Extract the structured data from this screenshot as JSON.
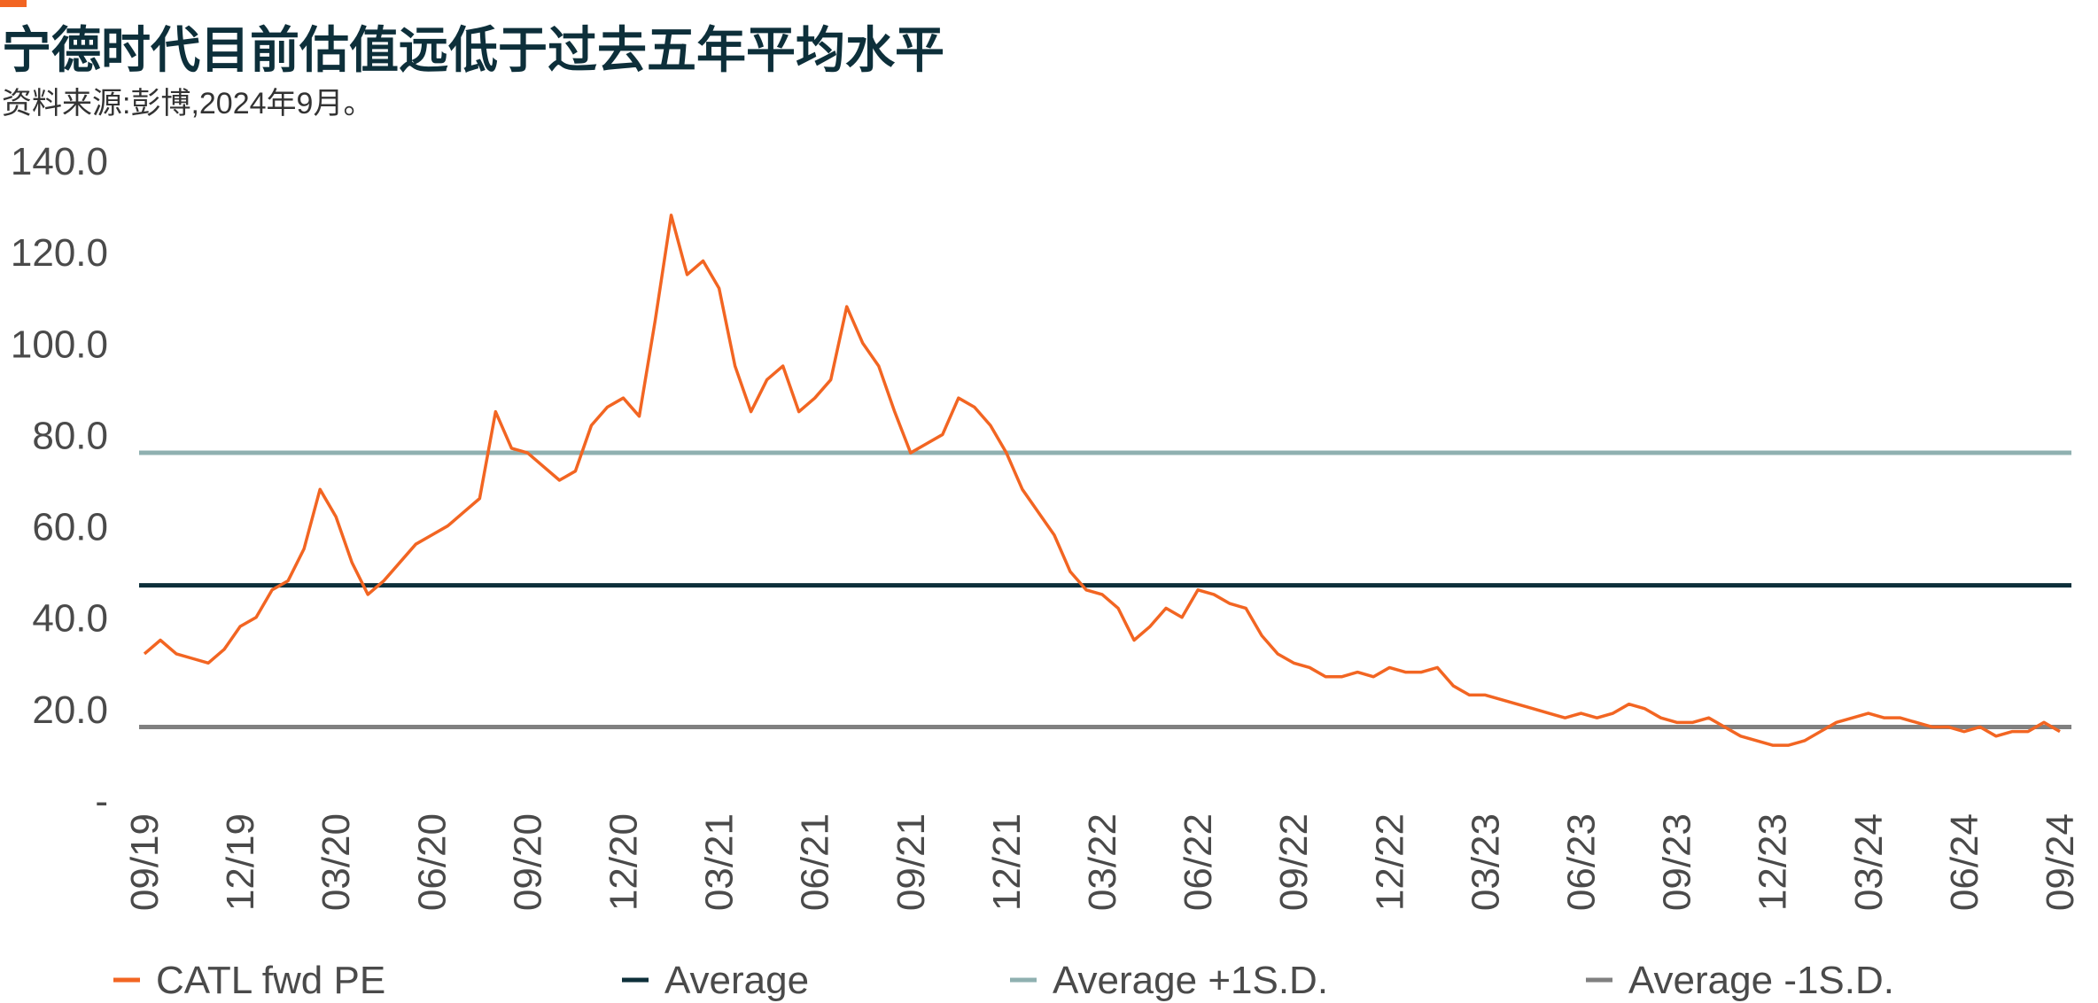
{
  "chart_data": {
    "type": "line",
    "title": "宁德时代目前估值远低于过去五年平均水平",
    "subtitle": "资料来源:彭博,2024年9月。",
    "categories": [
      "09/19",
      null,
      null,
      null,
      null,
      null,
      "12/19",
      null,
      null,
      null,
      null,
      null,
      "03/20",
      null,
      null,
      null,
      null,
      null,
      "06/20",
      null,
      null,
      null,
      null,
      null,
      "09/20",
      null,
      null,
      null,
      null,
      null,
      "12/20",
      null,
      null,
      null,
      null,
      null,
      "03/21",
      null,
      null,
      null,
      null,
      null,
      "06/21",
      null,
      null,
      null,
      null,
      null,
      "09/21",
      null,
      null,
      null,
      null,
      null,
      "12/21",
      null,
      null,
      null,
      null,
      null,
      "03/22",
      null,
      null,
      null,
      null,
      null,
      "06/22",
      null,
      null,
      null,
      null,
      null,
      "09/22",
      null,
      null,
      null,
      null,
      null,
      "12/22",
      null,
      null,
      null,
      null,
      null,
      "03/23",
      null,
      null,
      null,
      null,
      null,
      "06/23",
      null,
      null,
      null,
      null,
      null,
      "09/23",
      null,
      null,
      null,
      null,
      null,
      "12/23",
      null,
      null,
      null,
      null,
      null,
      "03/24",
      null,
      null,
      null,
      null,
      null,
      "06/24",
      null,
      null,
      null,
      null,
      null,
      "09/24"
    ],
    "series": [
      {
        "name": "CATL fwd PE",
        "color": "#f26522",
        "values": [
          32,
          35,
          32,
          31,
          30,
          33,
          38,
          40,
          46,
          48,
          55,
          68,
          62,
          52,
          45,
          48,
          52,
          56,
          58,
          60,
          63,
          66,
          85,
          77,
          76,
          73,
          70,
          72,
          82,
          86,
          88,
          84,
          105,
          128,
          115,
          118,
          112,
          95,
          85,
          92,
          95,
          85,
          88,
          92,
          108,
          100,
          95,
          85,
          76,
          78,
          80,
          88,
          86,
          82,
          76,
          68,
          63,
          58,
          50,
          46,
          45,
          42,
          35,
          38,
          42,
          40,
          46,
          45,
          43,
          42,
          36,
          32,
          30,
          29,
          27,
          27,
          28,
          27,
          29,
          28,
          28,
          29,
          25,
          23,
          23,
          22,
          21,
          20,
          19,
          18,
          19,
          18,
          19,
          21,
          20,
          18,
          17,
          17,
          18,
          16,
          14,
          13,
          12,
          12,
          13,
          15,
          17,
          18,
          19,
          18,
          18,
          17,
          16,
          16,
          15,
          16,
          14,
          15,
          15,
          17,
          15
        ]
      }
    ],
    "reference_lines": [
      {
        "name": "Average",
        "color": "#0d2f3a",
        "value": 47
      },
      {
        "name": "Average +1S.D.",
        "color": "#8fb0b0",
        "value": 76
      },
      {
        "name": "Average -1S.D.",
        "color": "#808080",
        "value": 16
      }
    ],
    "ylim": [
      0,
      140
    ],
    "yticks": [
      {
        "value": 0,
        "label": "-"
      },
      {
        "value": 20,
        "label": "20.0"
      },
      {
        "value": 40,
        "label": "40.0"
      },
      {
        "value": 60,
        "label": "60.0"
      },
      {
        "value": 80,
        "label": "80.0"
      },
      {
        "value": 100,
        "label": "100.0"
      },
      {
        "value": 120,
        "label": "120.0"
      },
      {
        "value": 140,
        "label": "140.0"
      }
    ],
    "grid": false
  }
}
